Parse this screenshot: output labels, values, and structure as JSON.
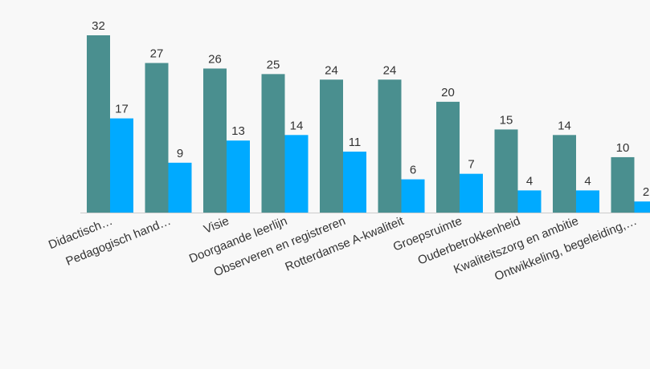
{
  "chart_data": {
    "type": "bar",
    "title": "",
    "xlabel": "",
    "ylabel": "",
    "ylim": [
      0,
      32
    ],
    "grid": false,
    "legend": "none",
    "categories": [
      "Didactisch…",
      "Pedagogisch hand…",
      "Visie",
      "Doorgaande leerlijn",
      "Observeren en registreren",
      "Rotterdamse A-kwaliteit",
      "Groepsruimte",
      "Ouderbetrokkenheid",
      "Kwaliteitszorg en ambitie",
      "Ontwikkeling, begeleiding,…"
    ],
    "series": [
      {
        "color": "#4a8f8f",
        "values": [
          32,
          27,
          26,
          25,
          24,
          24,
          20,
          15,
          14,
          10
        ]
      },
      {
        "color": "#00aaff",
        "values": [
          17,
          9,
          13,
          14,
          11,
          6,
          7,
          4,
          4,
          2
        ]
      }
    ]
  }
}
